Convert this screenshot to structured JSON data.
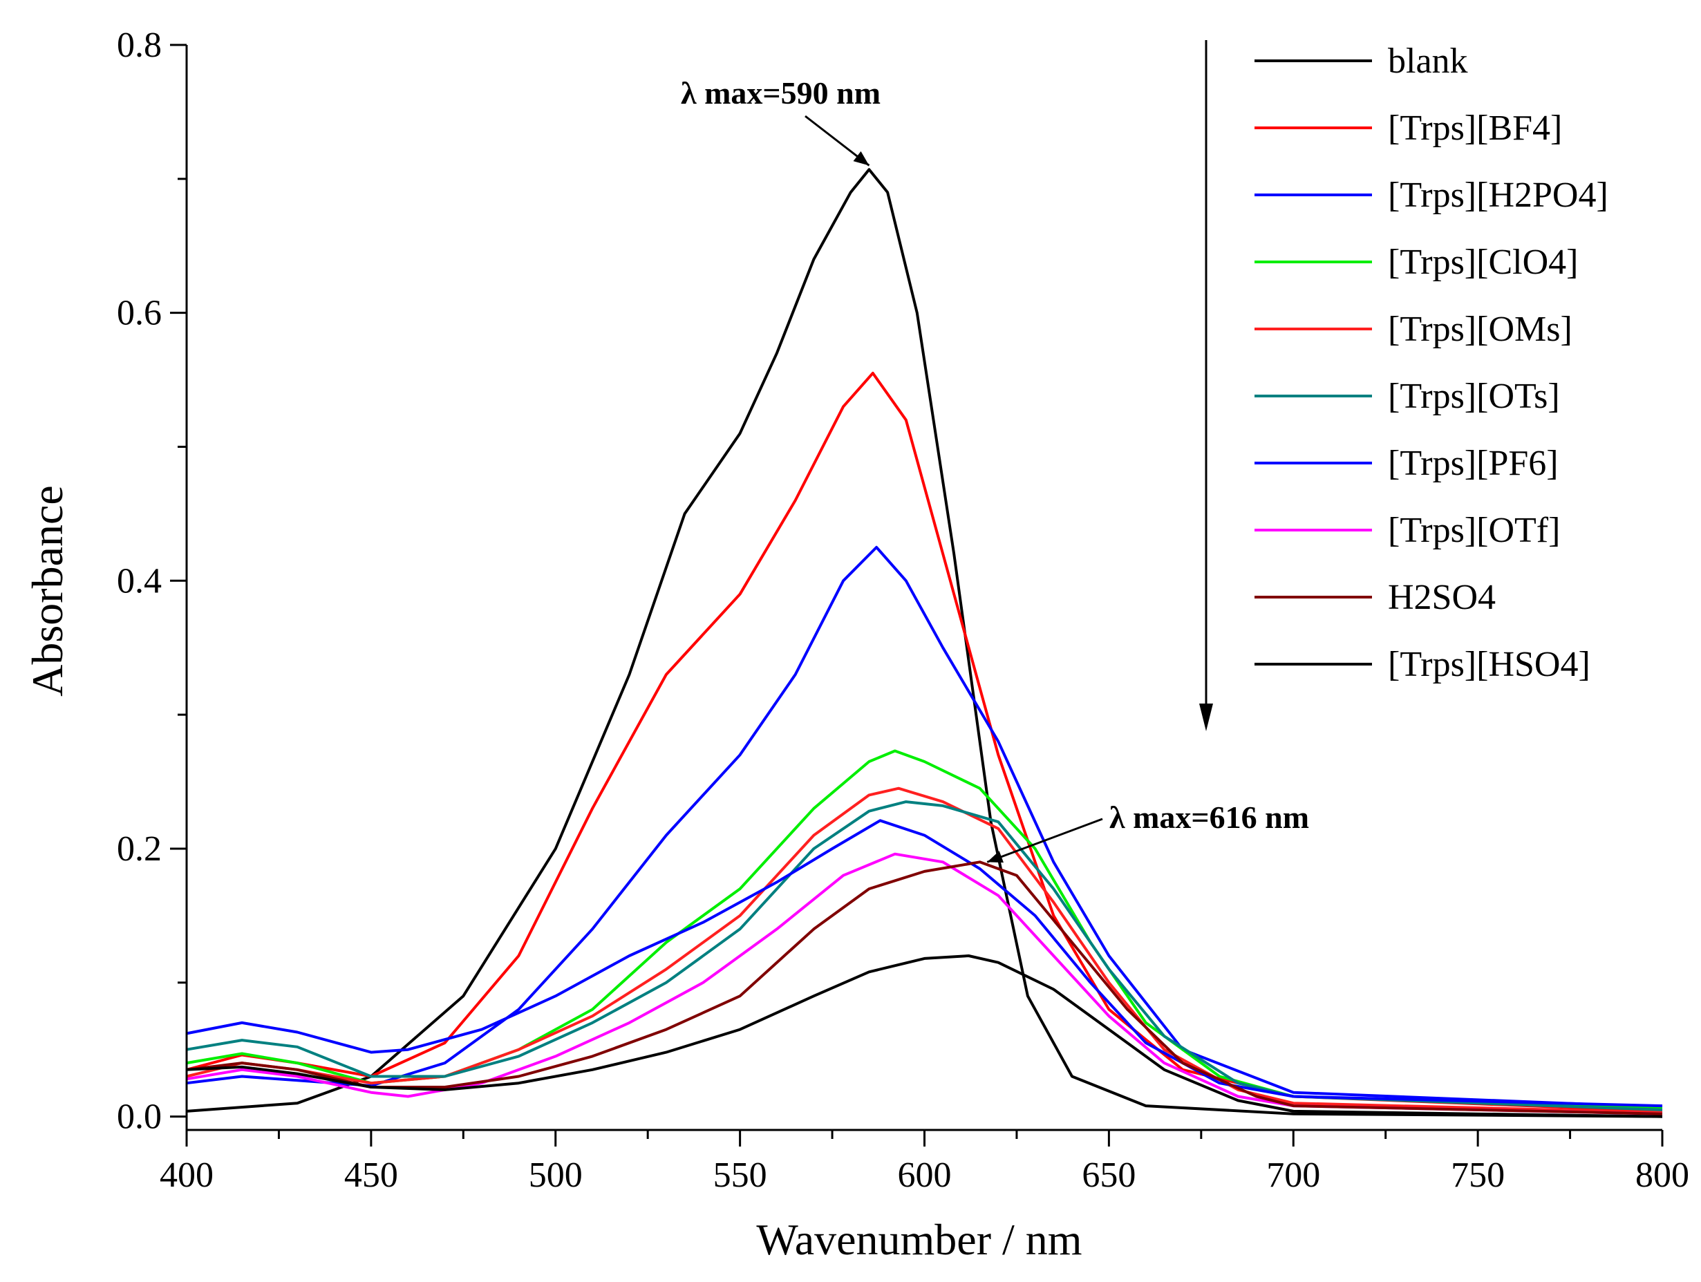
{
  "chart_data": {
    "type": "line",
    "title": "",
    "xlabel": "Wavenumber / nm",
    "ylabel": "Absorbance",
    "xlim": [
      400,
      800
    ],
    "ylim": [
      -0.01,
      0.8
    ],
    "xticks": [
      "400",
      "450",
      "500",
      "550",
      "600",
      "650",
      "700",
      "750",
      "800"
    ],
    "yticks": [
      "0.0",
      "0.2",
      "0.4",
      "0.6",
      "0.8"
    ],
    "grid": false,
    "legend_position": "top-right",
    "annotations": [
      {
        "text": "λ max=590 nm",
        "point": [
          585,
          0.71
        ]
      },
      {
        "text": "λ max=616 nm",
        "point": [
          617,
          0.19
        ]
      }
    ],
    "trend_arrow": "downward arrow beside legend",
    "series": [
      {
        "name": "blank",
        "color": "#000000",
        "points": [
          [
            400,
            0.004
          ],
          [
            430,
            0.01
          ],
          [
            450,
            0.03
          ],
          [
            475,
            0.09
          ],
          [
            500,
            0.2
          ],
          [
            520,
            0.33
          ],
          [
            535,
            0.45
          ],
          [
            550,
            0.51
          ],
          [
            560,
            0.57
          ],
          [
            570,
            0.64
          ],
          [
            580,
            0.69
          ],
          [
            585,
            0.707
          ],
          [
            590,
            0.69
          ],
          [
            598,
            0.6
          ],
          [
            608,
            0.42
          ],
          [
            618,
            0.22
          ],
          [
            628,
            0.09
          ],
          [
            640,
            0.03
          ],
          [
            660,
            0.008
          ],
          [
            700,
            0.002
          ],
          [
            800,
            0.0
          ]
        ]
      },
      {
        "name": "[Trps][BF4]",
        "color": "#ff0000",
        "points": [
          [
            400,
            0.035
          ],
          [
            415,
            0.046
          ],
          [
            430,
            0.04
          ],
          [
            450,
            0.03
          ],
          [
            470,
            0.055
          ],
          [
            490,
            0.12
          ],
          [
            510,
            0.23
          ],
          [
            530,
            0.33
          ],
          [
            550,
            0.39
          ],
          [
            565,
            0.46
          ],
          [
            578,
            0.53
          ],
          [
            586,
            0.555
          ],
          [
            595,
            0.52
          ],
          [
            605,
            0.42
          ],
          [
            620,
            0.27
          ],
          [
            635,
            0.15
          ],
          [
            650,
            0.08
          ],
          [
            670,
            0.035
          ],
          [
            700,
            0.015
          ],
          [
            800,
            0.004
          ]
        ]
      },
      {
        "name": "[Trps][H2PO4]",
        "color": "#0000ff",
        "points": [
          [
            400,
            0.025
          ],
          [
            415,
            0.03
          ],
          [
            430,
            0.027
          ],
          [
            450,
            0.023
          ],
          [
            470,
            0.04
          ],
          [
            490,
            0.08
          ],
          [
            510,
            0.14
          ],
          [
            530,
            0.21
          ],
          [
            550,
            0.27
          ],
          [
            565,
            0.33
          ],
          [
            578,
            0.4
          ],
          [
            587,
            0.425
          ],
          [
            595,
            0.4
          ],
          [
            605,
            0.35
          ],
          [
            620,
            0.28
          ],
          [
            635,
            0.19
          ],
          [
            650,
            0.12
          ],
          [
            670,
            0.05
          ],
          [
            700,
            0.018
          ],
          [
            800,
            0.007
          ]
        ]
      },
      {
        "name": "[Trps][ClO4]",
        "color": "#00ee00",
        "points": [
          [
            400,
            0.04
          ],
          [
            415,
            0.047
          ],
          [
            430,
            0.04
          ],
          [
            450,
            0.025
          ],
          [
            470,
            0.03
          ],
          [
            490,
            0.05
          ],
          [
            510,
            0.08
          ],
          [
            530,
            0.13
          ],
          [
            550,
            0.17
          ],
          [
            570,
            0.23
          ],
          [
            585,
            0.265
          ],
          [
            592,
            0.273
          ],
          [
            600,
            0.265
          ],
          [
            615,
            0.245
          ],
          [
            630,
            0.2
          ],
          [
            645,
            0.13
          ],
          [
            660,
            0.07
          ],
          [
            680,
            0.03
          ],
          [
            700,
            0.015
          ],
          [
            800,
            0.006
          ]
        ]
      },
      {
        "name": "[Trps][OMs]",
        "color": "#ff2020",
        "points": [
          [
            400,
            0.03
          ],
          [
            415,
            0.04
          ],
          [
            430,
            0.035
          ],
          [
            450,
            0.025
          ],
          [
            470,
            0.03
          ],
          [
            490,
            0.05
          ],
          [
            510,
            0.075
          ],
          [
            530,
            0.11
          ],
          [
            550,
            0.15
          ],
          [
            570,
            0.21
          ],
          [
            585,
            0.24
          ],
          [
            593,
            0.245
          ],
          [
            605,
            0.235
          ],
          [
            620,
            0.215
          ],
          [
            635,
            0.16
          ],
          [
            650,
            0.1
          ],
          [
            665,
            0.05
          ],
          [
            685,
            0.02
          ],
          [
            700,
            0.01
          ],
          [
            800,
            0.003
          ]
        ]
      },
      {
        "name": "[Trps][OTs]",
        "color": "#008080",
        "points": [
          [
            400,
            0.05
          ],
          [
            415,
            0.057
          ],
          [
            430,
            0.052
          ],
          [
            450,
            0.03
          ],
          [
            470,
            0.03
          ],
          [
            490,
            0.045
          ],
          [
            510,
            0.07
          ],
          [
            530,
            0.1
          ],
          [
            550,
            0.14
          ],
          [
            570,
            0.2
          ],
          [
            585,
            0.228
          ],
          [
            595,
            0.235
          ],
          [
            605,
            0.232
          ],
          [
            620,
            0.22
          ],
          [
            635,
            0.17
          ],
          [
            650,
            0.11
          ],
          [
            665,
            0.06
          ],
          [
            685,
            0.025
          ],
          [
            700,
            0.015
          ],
          [
            800,
            0.005
          ]
        ]
      },
      {
        "name": "[Trps][PF6]",
        "color": "#0000ff",
        "points": [
          [
            400,
            0.062
          ],
          [
            415,
            0.07
          ],
          [
            430,
            0.063
          ],
          [
            450,
            0.048
          ],
          [
            460,
            0.05
          ],
          [
            480,
            0.065
          ],
          [
            500,
            0.09
          ],
          [
            520,
            0.12
          ],
          [
            540,
            0.145
          ],
          [
            560,
            0.175
          ],
          [
            575,
            0.2
          ],
          [
            588,
            0.221
          ],
          [
            600,
            0.21
          ],
          [
            615,
            0.185
          ],
          [
            630,
            0.15
          ],
          [
            645,
            0.1
          ],
          [
            660,
            0.055
          ],
          [
            680,
            0.025
          ],
          [
            700,
            0.015
          ],
          [
            800,
            0.008
          ]
        ]
      },
      {
        "name": "[Trps][OTf]",
        "color": "#ff00ff",
        "points": [
          [
            400,
            0.028
          ],
          [
            415,
            0.035
          ],
          [
            430,
            0.03
          ],
          [
            450,
            0.018
          ],
          [
            460,
            0.015
          ],
          [
            480,
            0.025
          ],
          [
            500,
            0.045
          ],
          [
            520,
            0.07
          ],
          [
            540,
            0.1
          ],
          [
            560,
            0.14
          ],
          [
            578,
            0.18
          ],
          [
            592,
            0.196
          ],
          [
            605,
            0.19
          ],
          [
            620,
            0.165
          ],
          [
            635,
            0.12
          ],
          [
            650,
            0.075
          ],
          [
            665,
            0.04
          ],
          [
            685,
            0.015
          ],
          [
            700,
            0.008
          ],
          [
            800,
            0.002
          ]
        ]
      },
      {
        "name": "H2SO4",
        "color": "#800000",
        "points": [
          [
            400,
            0.035
          ],
          [
            415,
            0.04
          ],
          [
            430,
            0.035
          ],
          [
            450,
            0.022
          ],
          [
            470,
            0.022
          ],
          [
            490,
            0.03
          ],
          [
            510,
            0.045
          ],
          [
            530,
            0.065
          ],
          [
            550,
            0.09
          ],
          [
            570,
            0.14
          ],
          [
            585,
            0.17
          ],
          [
            600,
            0.183
          ],
          [
            615,
            0.19
          ],
          [
            625,
            0.18
          ],
          [
            640,
            0.13
          ],
          [
            655,
            0.08
          ],
          [
            670,
            0.04
          ],
          [
            690,
            0.015
          ],
          [
            700,
            0.008
          ],
          [
            800,
            0.002
          ]
        ]
      },
      {
        "name": "[Trps][HSO4]",
        "color": "#000000",
        "points": [
          [
            400,
            0.035
          ],
          [
            415,
            0.037
          ],
          [
            430,
            0.032
          ],
          [
            450,
            0.022
          ],
          [
            470,
            0.02
          ],
          [
            490,
            0.025
          ],
          [
            510,
            0.035
          ],
          [
            530,
            0.048
          ],
          [
            550,
            0.065
          ],
          [
            570,
            0.09
          ],
          [
            585,
            0.108
          ],
          [
            600,
            0.118
          ],
          [
            612,
            0.12
          ],
          [
            620,
            0.115
          ],
          [
            635,
            0.095
          ],
          [
            650,
            0.065
          ],
          [
            665,
            0.035
          ],
          [
            685,
            0.012
          ],
          [
            700,
            0.004
          ],
          [
            800,
            0.0
          ]
        ]
      }
    ]
  }
}
